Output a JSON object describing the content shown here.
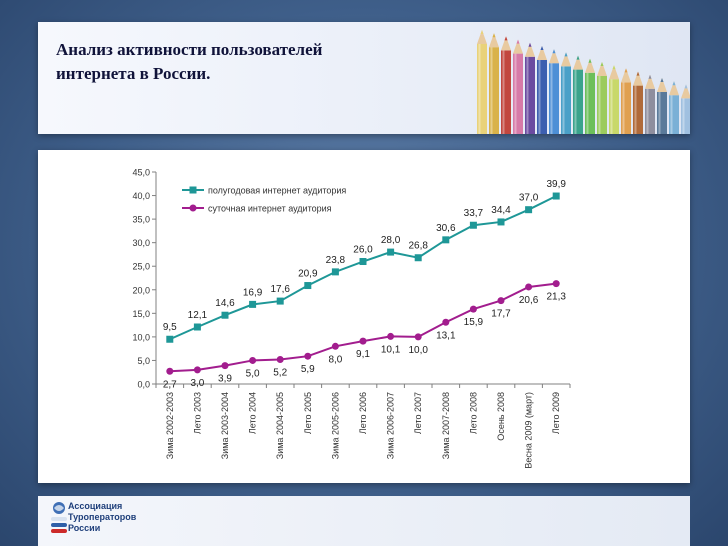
{
  "slide": {
    "title_line1": "Анализ активности пользователей",
    "title_line2": "интернета в России."
  },
  "footer": {
    "org_line1": "Ассоциация",
    "org_line2": "Туроператоров",
    "org_line3": "России"
  },
  "colors": {
    "series1": "#1e9797",
    "series2": "#a21d8e"
  },
  "chart_data": {
    "type": "line",
    "title": "",
    "xlabel": "",
    "ylabel": "",
    "ylim": [
      0,
      45
    ],
    "yticks": [
      "0,0",
      "5,0",
      "10,0",
      "15,0",
      "20,0",
      "25,0",
      "30,0",
      "35,0",
      "40,0",
      "45,0"
    ],
    "grid": false,
    "legend_position": "top-left",
    "categories": [
      "Зима 2002-2003",
      "Лето 2003",
      "Зима 2003-2004",
      "Лето 2004",
      "Зима 2004-2005",
      "Лето 2005",
      "Зима 2005-2006",
      "Лето 2006",
      "Зима 2006-2007",
      "Лето 2007",
      "Зима 2007-2008",
      "Лето 2008",
      "Осень 2008",
      "Весна 2009 (март)",
      "Лето 2009"
    ],
    "series": [
      {
        "name": "полугодовая интернет аудитория",
        "values": [
          9.5,
          12.1,
          14.6,
          16.9,
          17.6,
          20.9,
          23.8,
          26.0,
          28.0,
          26.8,
          30.6,
          33.7,
          34.4,
          37.0,
          39.9
        ],
        "labels": [
          "9,5",
          "12,1",
          "14,6",
          "16,9",
          "17,6",
          "20,9",
          "23,8",
          "26,0",
          "28,0",
          "26,8",
          "30,6",
          "33,7",
          "34,4",
          "37,0",
          "39,9"
        ]
      },
      {
        "name": "суточная интернет аудитория",
        "values": [
          2.7,
          3.0,
          3.9,
          5.0,
          5.2,
          5.9,
          8.0,
          9.1,
          10.1,
          10.0,
          13.1,
          15.9,
          17.7,
          20.6,
          21.3
        ],
        "labels": [
          "2,7",
          "3,0",
          "3,9",
          "5,0",
          "5,2",
          "5,9",
          "8,0",
          "9,1",
          "10,1",
          "10,0",
          "13,1",
          "15,9",
          "17,7",
          "20,6",
          "21,3"
        ]
      }
    ]
  }
}
